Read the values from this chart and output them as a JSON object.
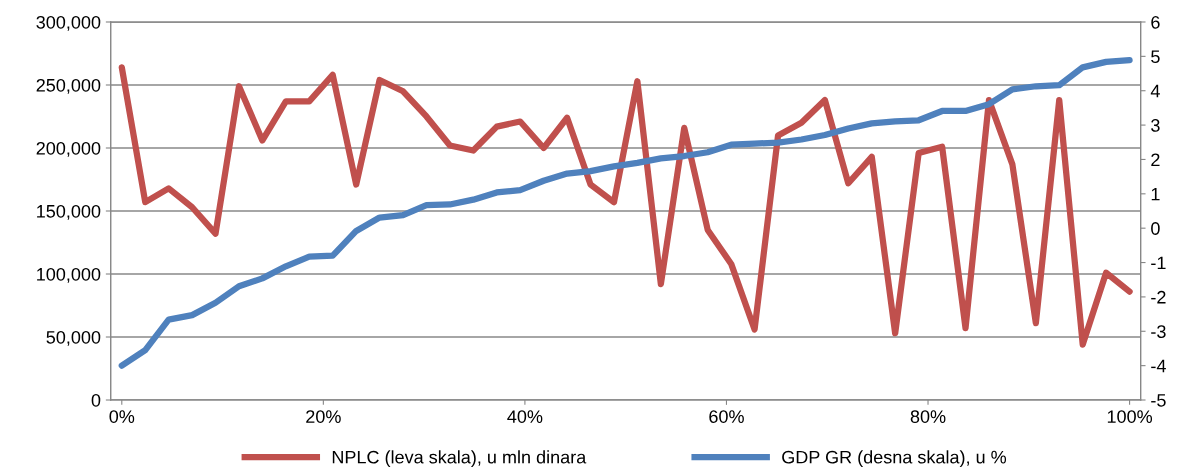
{
  "chart_data": {
    "type": "line",
    "x": [
      0,
      2.33,
      4.65,
      6.98,
      9.3,
      11.63,
      13.95,
      16.28,
      18.6,
      20.93,
      23.26,
      25.58,
      27.91,
      30.23,
      32.56,
      34.88,
      37.21,
      39.53,
      41.86,
      44.19,
      46.51,
      48.84,
      51.16,
      53.49,
      55.81,
      58.14,
      60.47,
      62.79,
      65.12,
      67.44,
      69.77,
      72.09,
      74.42,
      76.74,
      79.07,
      81.4,
      83.72,
      86.05,
      88.37,
      90.7,
      93.02,
      95.35,
      97.67,
      100
    ],
    "series": [
      {
        "name": "NPLC (leva skala), u mln dinara",
        "color": "#c0504d",
        "values": [
          264000,
          157000,
          168000,
          153000,
          132000,
          249000,
          206000,
          237000,
          237000,
          258000,
          171000,
          254000,
          245000,
          225000,
          202000,
          198000,
          217000,
          221000,
          200000,
          224000,
          171000,
          157000,
          253000,
          92000,
          216000,
          135000,
          108000,
          56000,
          210000,
          220000,
          238000,
          172000,
          193000,
          53000,
          196000,
          201000,
          57000,
          238000,
          187000,
          61000,
          238000,
          44000,
          101000,
          86000
        ]
      },
      {
        "name": "GDP GR (desna skala), u %",
        "color": "#4f81bd",
        "axis": "y2",
        "values": [
          -4.0,
          -3.55,
          -2.66,
          -2.53,
          -2.17,
          -1.69,
          -1.46,
          -1.11,
          -0.83,
          -0.8,
          -0.08,
          0.31,
          0.38,
          0.67,
          0.69,
          0.83,
          1.04,
          1.11,
          1.38,
          1.59,
          1.66,
          1.8,
          1.9,
          2.03,
          2.1,
          2.21,
          2.43,
          2.46,
          2.49,
          2.58,
          2.71,
          2.9,
          3.05,
          3.11,
          3.14,
          3.41,
          3.41,
          3.61,
          4.04,
          4.13,
          4.16,
          4.68,
          4.84,
          4.89
        ]
      }
    ],
    "xlim": [
      -1.1,
      101.1
    ],
    "xticks": [
      {
        "value": 0,
        "label": "0%"
      },
      {
        "value": 20,
        "label": "20%"
      },
      {
        "value": 40,
        "label": "40%"
      },
      {
        "value": 60,
        "label": "60%"
      },
      {
        "value": 80,
        "label": "80%"
      },
      {
        "value": 100,
        "label": "100%"
      }
    ],
    "ylim": [
      0,
      300000
    ],
    "yticks": [
      {
        "value": 0,
        "label": "0"
      },
      {
        "value": 50000,
        "label": "50,000"
      },
      {
        "value": 100000,
        "label": "100,000"
      },
      {
        "value": 150000,
        "label": "150,000"
      },
      {
        "value": 200000,
        "label": "200,000"
      },
      {
        "value": 250000,
        "label": "250,000"
      },
      {
        "value": 300000,
        "label": "300,000"
      }
    ],
    "y2lim": [
      -5,
      6
    ],
    "y2ticks": [
      -5,
      -4,
      -3,
      -2,
      -1,
      0,
      1,
      2,
      3,
      4,
      5,
      6
    ],
    "grid": "y",
    "legend": "bottom",
    "marker": "none",
    "line_style": "solid"
  }
}
